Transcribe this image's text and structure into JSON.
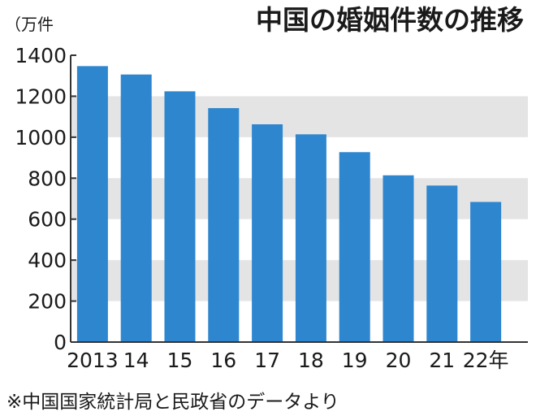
{
  "chart_data": {
    "type": "bar",
    "title": "中国の婚姻件数の推移",
    "unit_label": "（万件",
    "xlabel": "",
    "ylabel": "",
    "categories": [
      "2013",
      "14",
      "15",
      "16",
      "17",
      "18",
      "19",
      "20",
      "21",
      "22年"
    ],
    "values": [
      1347,
      1306,
      1224,
      1142,
      1063,
      1014,
      927,
      814,
      764,
      684
    ],
    "ylim": [
      0,
      1400
    ],
    "yticks": [
      0,
      200,
      400,
      600,
      800,
      1000,
      1200,
      1400
    ],
    "bar_color": "#2e86cf",
    "band_color": "#e4e4e4",
    "grid": "alternating horizontal bands"
  },
  "source_note": "※中国国家統計局と民政省のデータより"
}
